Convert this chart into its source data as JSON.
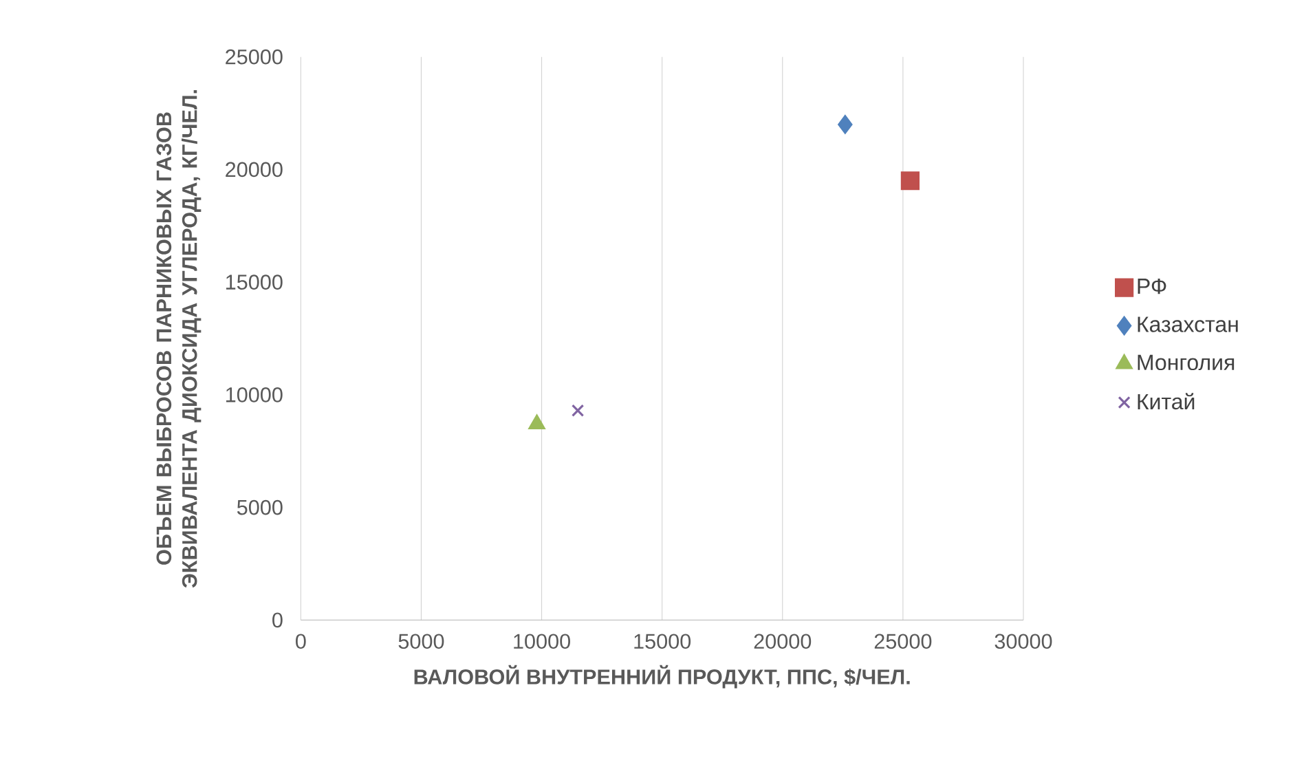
{
  "chart_data": {
    "type": "scatter",
    "xlabel": "ВАЛОВОЙ ВНУТРЕННИЙ ПРОДУКТ, ППС, $/ЧЕЛ.",
    "ylabel": "ОБЪЕМ ВЫБРОСОВ ПАРНИКОВЫХ ГАЗОВ ЭКВИВАЛЕНТА ДИОКСИДА УГЛЕРОДА, КГ/ЧЕЛ.",
    "series": [
      {
        "name": "РФ",
        "color": "#c0504d",
        "marker": "square",
        "x": [
          25300
        ],
        "values": [
          19500
        ]
      },
      {
        "name": "Казахстан",
        "color": "#4f81bd",
        "marker": "diamond",
        "x": [
          22600
        ],
        "values": [
          22000
        ]
      },
      {
        "name": "Монголия",
        "color": "#9bbb59",
        "marker": "triangle",
        "x": [
          9800
        ],
        "values": [
          8700
        ]
      },
      {
        "name": "Китай",
        "color": "#8064a2",
        "marker": "cross",
        "x": [
          11500
        ],
        "values": [
          9300
        ]
      }
    ],
    "xlim": [
      0,
      30000
    ],
    "ylim": [
      0,
      25000
    ],
    "xticks": [
      0,
      5000,
      10000,
      15000,
      20000,
      25000,
      30000
    ],
    "yticks": [
      0,
      5000,
      10000,
      15000,
      20000,
      25000
    ],
    "grid": "x",
    "legend": "right"
  }
}
